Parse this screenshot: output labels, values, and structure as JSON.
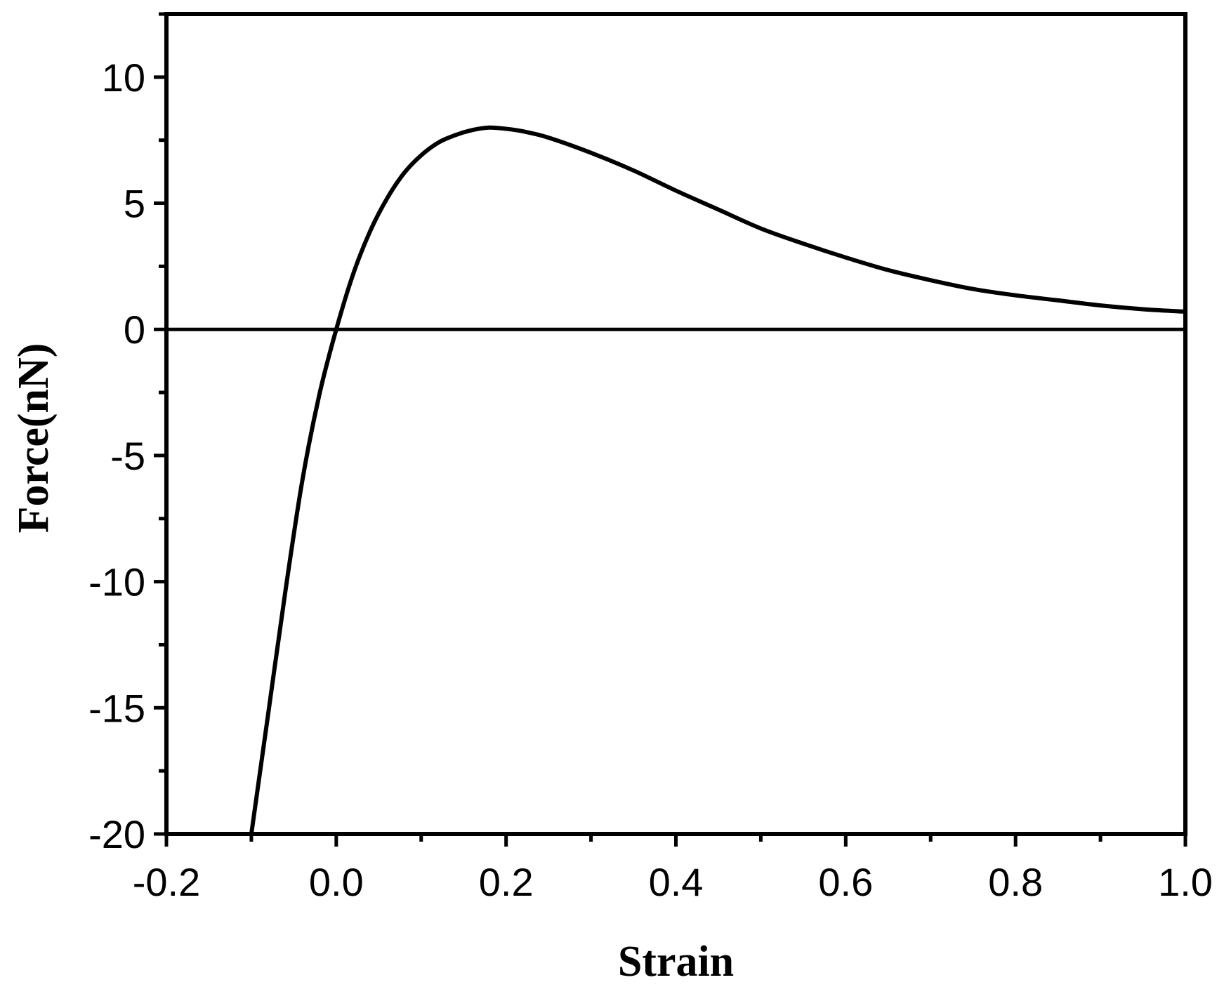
{
  "chart_data": {
    "type": "line",
    "title": "",
    "xlabel": "Strain",
    "ylabel": "Force(nN)",
    "xlim": [
      -0.2,
      1.0
    ],
    "ylim": [
      -20,
      12.5
    ],
    "x_ticks": [
      -0.2,
      0.0,
      0.2,
      0.4,
      0.6,
      0.8,
      1.0
    ],
    "x_tick_labels": [
      "-0.2",
      "0.0",
      "0.2",
      "0.4",
      "0.6",
      "0.8",
      "1.0"
    ],
    "y_ticks": [
      -20,
      -15,
      -10,
      -5,
      0,
      5,
      10
    ],
    "y_tick_labels": [
      "-20",
      "-15",
      "-10",
      "-5",
      "0",
      "5",
      "10"
    ],
    "x_minor_step": 0.1,
    "y_minor_step": 2.5,
    "grid": false,
    "legend": "none",
    "reference_lines": [
      {
        "y": 0
      }
    ],
    "series": [
      {
        "color": "#000000",
        "points": [
          [
            -0.1,
            -20.0
          ],
          [
            -0.08,
            -15.2
          ],
          [
            -0.06,
            -10.4
          ],
          [
            -0.04,
            -6.0
          ],
          [
            -0.02,
            -2.6
          ],
          [
            0.0,
            0.0
          ],
          [
            0.02,
            2.2
          ],
          [
            0.04,
            3.9
          ],
          [
            0.06,
            5.2
          ],
          [
            0.08,
            6.2
          ],
          [
            0.1,
            6.9
          ],
          [
            0.12,
            7.4
          ],
          [
            0.14,
            7.7
          ],
          [
            0.16,
            7.9
          ],
          [
            0.18,
            8.0
          ],
          [
            0.2,
            7.95
          ],
          [
            0.22,
            7.85
          ],
          [
            0.25,
            7.6
          ],
          [
            0.3,
            7.0
          ],
          [
            0.35,
            6.3
          ],
          [
            0.4,
            5.5
          ],
          [
            0.45,
            4.75
          ],
          [
            0.5,
            4.0
          ],
          [
            0.55,
            3.4
          ],
          [
            0.6,
            2.85
          ],
          [
            0.65,
            2.35
          ],
          [
            0.7,
            1.95
          ],
          [
            0.75,
            1.6
          ],
          [
            0.8,
            1.35
          ],
          [
            0.85,
            1.15
          ],
          [
            0.9,
            0.95
          ],
          [
            0.95,
            0.8
          ],
          [
            1.0,
            0.7
          ]
        ]
      }
    ]
  }
}
